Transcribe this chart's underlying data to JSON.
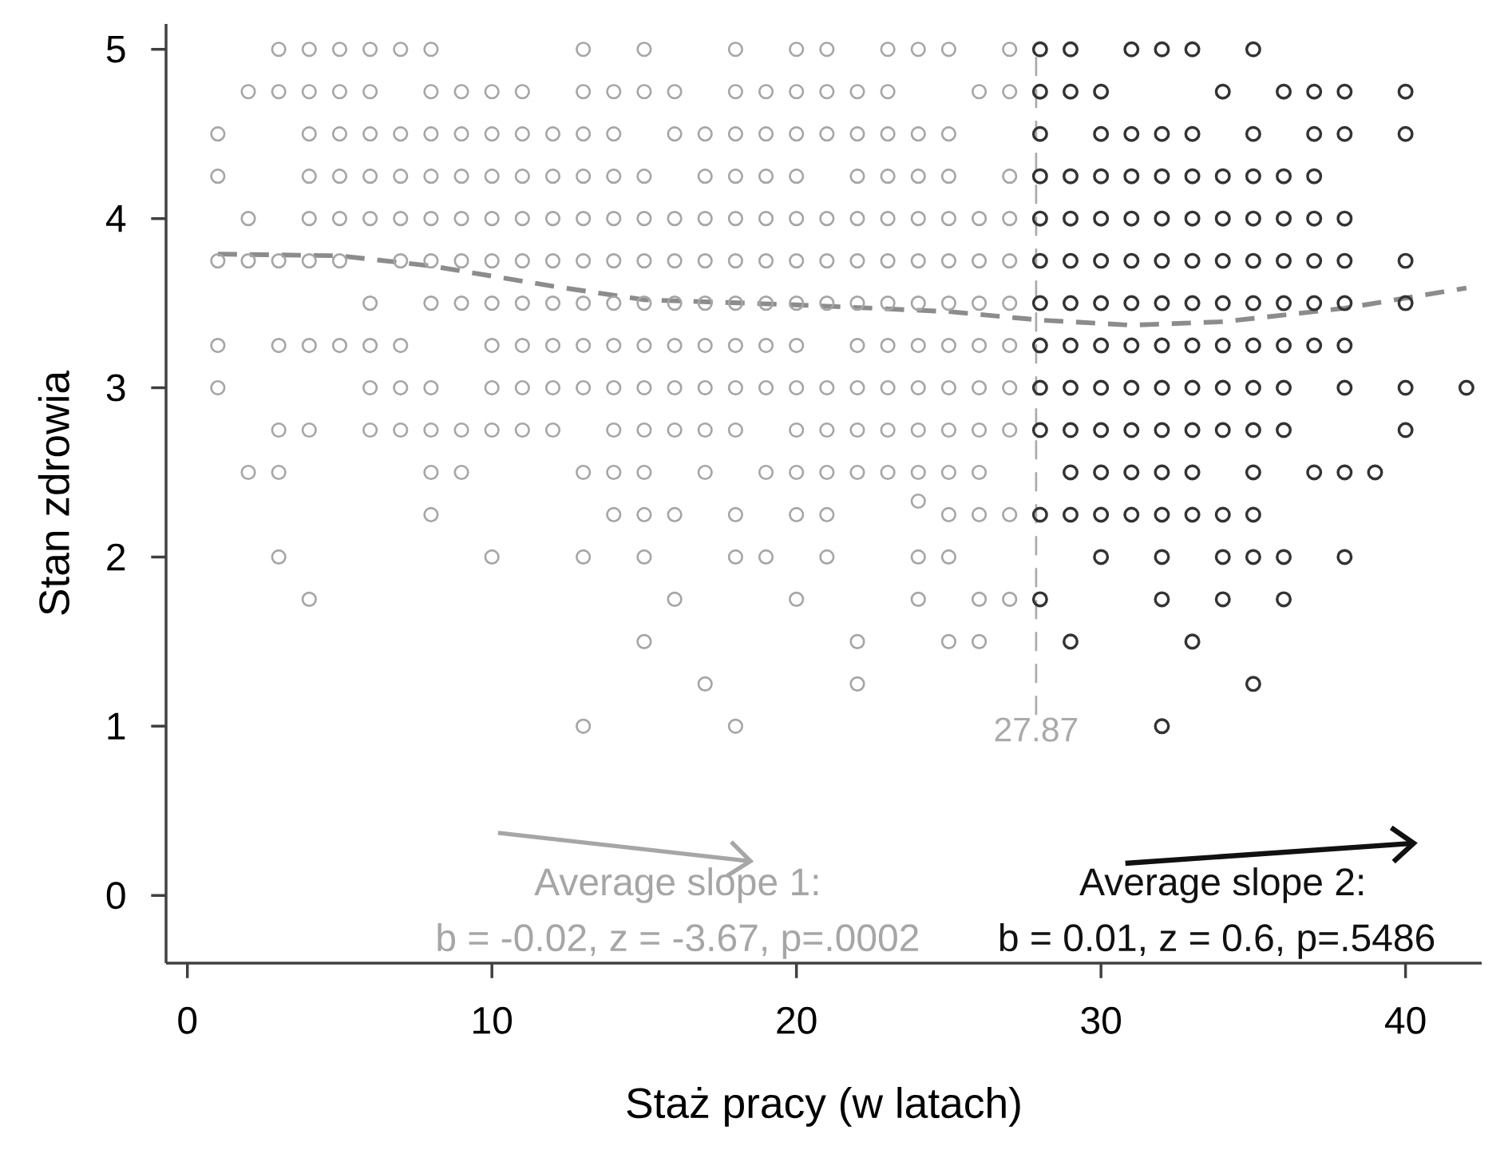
{
  "chart_data": {
    "type": "scatter",
    "xlabel": "Staż pracy (w latach)",
    "ylabel": "Stan zdrowia",
    "marker": "circle",
    "xlim": [
      -0.7,
      42.5
    ],
    "ylim": [
      -0.4,
      5.15
    ],
    "xticks": [
      0,
      10,
      20,
      30,
      40
    ],
    "yticks": [
      0,
      1,
      2,
      3,
      4,
      5
    ],
    "annotations": [
      "Average slope 1:",
      "b = -0.02, z = -3.67, p=.0002",
      "Average slope 2:",
      "b = 0.01, z = 0.6, p=.5486"
    ],
    "ref_lines": [
      {
        "axis": "x",
        "value": 27.87,
        "label": "27.87",
        "color": "#aaaaaa",
        "line_style": "dashed"
      }
    ],
    "series": [
      {
        "color": "#a6a6a6",
        "x": [
          3,
          4,
          5,
          6,
          7,
          8,
          13,
          15,
          18,
          20,
          21,
          23,
          24,
          25,
          27,
          2,
          3,
          4,
          5,
          6,
          8,
          9,
          10,
          11,
          13,
          14,
          15,
          16,
          18,
          19,
          20,
          21,
          22,
          23,
          26,
          27,
          1,
          4,
          5,
          6,
          7,
          8,
          9,
          10,
          11,
          12,
          13,
          14,
          16,
          17,
          18,
          19,
          20,
          21,
          22,
          23,
          24,
          25,
          1,
          4,
          5,
          6,
          7,
          8,
          9,
          10,
          11,
          12,
          13,
          14,
          15,
          17,
          18,
          19,
          20,
          22,
          23,
          24,
          25,
          27,
          2,
          4,
          5,
          6,
          7,
          8,
          9,
          10,
          11,
          12,
          13,
          14,
          15,
          16,
          17,
          18,
          19,
          20,
          21,
          22,
          23,
          24,
          25,
          26,
          27,
          1,
          2,
          3,
          4,
          5,
          7,
          8,
          9,
          10,
          11,
          12,
          13,
          14,
          15,
          16,
          17,
          18,
          19,
          20,
          21,
          22,
          23,
          24,
          25,
          26,
          27,
          6,
          8,
          9,
          10,
          11,
          12,
          13,
          14,
          15,
          16,
          17,
          18,
          19,
          20,
          21,
          22,
          23,
          24,
          25,
          26,
          27,
          1,
          3,
          4,
          5,
          6,
          7,
          10,
          11,
          12,
          13,
          14,
          15,
          16,
          17,
          18,
          19,
          20,
          22,
          23,
          24,
          25,
          26,
          27,
          1,
          6,
          7,
          8,
          10,
          11,
          12,
          13,
          14,
          15,
          16,
          17,
          18,
          19,
          20,
          21,
          22,
          23,
          24,
          25,
          26,
          27,
          3,
          4,
          6,
          7,
          8,
          9,
          10,
          11,
          12,
          14,
          15,
          16,
          17,
          18,
          20,
          21,
          22,
          23,
          24,
          25,
          26,
          27,
          2,
          3,
          8,
          9,
          13,
          14,
          15,
          17,
          19,
          20,
          21,
          22,
          23,
          24,
          25,
          26,
          24,
          8,
          14,
          15,
          16,
          18,
          20,
          21,
          25,
          26,
          27,
          3,
          10,
          13,
          15,
          18,
          19,
          21,
          24,
          25,
          4,
          16,
          20,
          24,
          26,
          27,
          15,
          22,
          25,
          26,
          17,
          22,
          13,
          18
        ],
        "values": [
          5,
          5,
          5,
          5,
          5,
          5,
          5,
          5,
          5,
          5,
          5,
          5,
          5,
          5,
          5,
          4.75,
          4.75,
          4.75,
          4.75,
          4.75,
          4.75,
          4.75,
          4.75,
          4.75,
          4.75,
          4.75,
          4.75,
          4.75,
          4.75,
          4.75,
          4.75,
          4.75,
          4.75,
          4.75,
          4.75,
          4.75,
          4.5,
          4.5,
          4.5,
          4.5,
          4.5,
          4.5,
          4.5,
          4.5,
          4.5,
          4.5,
          4.5,
          4.5,
          4.5,
          4.5,
          4.5,
          4.5,
          4.5,
          4.5,
          4.5,
          4.5,
          4.5,
          4.5,
          4.25,
          4.25,
          4.25,
          4.25,
          4.25,
          4.25,
          4.25,
          4.25,
          4.25,
          4.25,
          4.25,
          4.25,
          4.25,
          4.25,
          4.25,
          4.25,
          4.25,
          4.25,
          4.25,
          4.25,
          4.25,
          4.25,
          4,
          4,
          4,
          4,
          4,
          4,
          4,
          4,
          4,
          4,
          4,
          4,
          4,
          4,
          4,
          4,
          4,
          4,
          4,
          4,
          4,
          4,
          4,
          4,
          4,
          3.75,
          3.75,
          3.75,
          3.75,
          3.75,
          3.75,
          3.75,
          3.75,
          3.75,
          3.75,
          3.75,
          3.75,
          3.75,
          3.75,
          3.75,
          3.75,
          3.75,
          3.75,
          3.75,
          3.75,
          3.75,
          3.75,
          3.75,
          3.75,
          3.75,
          3.75,
          3.5,
          3.5,
          3.5,
          3.5,
          3.5,
          3.5,
          3.5,
          3.5,
          3.5,
          3.5,
          3.5,
          3.5,
          3.5,
          3.5,
          3.5,
          3.5,
          3.5,
          3.5,
          3.5,
          3.5,
          3.5,
          3.25,
          3.25,
          3.25,
          3.25,
          3.25,
          3.25,
          3.25,
          3.25,
          3.25,
          3.25,
          3.25,
          3.25,
          3.25,
          3.25,
          3.25,
          3.25,
          3.25,
          3.25,
          3.25,
          3.25,
          3.25,
          3.25,
          3.25,
          3,
          3,
          3,
          3,
          3,
          3,
          3,
          3,
          3,
          3,
          3,
          3,
          3,
          3,
          3,
          3,
          3,
          3,
          3,
          3,
          3,
          3,
          2.75,
          2.75,
          2.75,
          2.75,
          2.75,
          2.75,
          2.75,
          2.75,
          2.75,
          2.75,
          2.75,
          2.75,
          2.75,
          2.75,
          2.75,
          2.75,
          2.75,
          2.75,
          2.75,
          2.75,
          2.75,
          2.75,
          2.5,
          2.5,
          2.5,
          2.5,
          2.5,
          2.5,
          2.5,
          2.5,
          2.5,
          2.5,
          2.5,
          2.5,
          2.5,
          2.5,
          2.5,
          2.5,
          2.33,
          2.25,
          2.25,
          2.25,
          2.25,
          2.25,
          2.25,
          2.25,
          2.25,
          2.25,
          2.25,
          2,
          2,
          2,
          2,
          2,
          2,
          2,
          2,
          2,
          1.75,
          1.75,
          1.75,
          1.75,
          1.75,
          1.75,
          1.5,
          1.5,
          1.5,
          1.5,
          1.25,
          1.25,
          1,
          1
        ]
      },
      {
        "color": "#333333",
        "x": [
          28,
          29,
          31,
          32,
          33,
          35,
          28,
          29,
          30,
          34,
          36,
          37,
          38,
          40,
          28,
          30,
          31,
          32,
          33,
          35,
          37,
          38,
          40,
          28,
          29,
          30,
          31,
          32,
          33,
          34,
          35,
          36,
          37,
          28,
          29,
          30,
          31,
          32,
          33,
          34,
          35,
          36,
          37,
          38,
          28,
          29,
          30,
          31,
          32,
          33,
          34,
          35,
          36,
          37,
          38,
          40,
          28,
          29,
          30,
          31,
          32,
          33,
          34,
          35,
          36,
          37,
          38,
          40,
          28,
          29,
          30,
          31,
          32,
          33,
          34,
          35,
          36,
          37,
          38,
          28,
          29,
          30,
          31,
          32,
          33,
          34,
          35,
          36,
          38,
          40,
          42,
          28,
          29,
          30,
          31,
          32,
          33,
          34,
          35,
          36,
          40,
          29,
          30,
          31,
          32,
          33,
          35,
          37,
          38,
          39,
          28,
          29,
          30,
          31,
          32,
          33,
          34,
          35,
          30,
          32,
          34,
          35,
          36,
          38,
          28,
          32,
          34,
          36,
          29,
          33,
          35,
          32
        ],
        "values": [
          5,
          5,
          5,
          5,
          5,
          5,
          4.75,
          4.75,
          4.75,
          4.75,
          4.75,
          4.75,
          4.75,
          4.75,
          4.5,
          4.5,
          4.5,
          4.5,
          4.5,
          4.5,
          4.5,
          4.5,
          4.5,
          4.25,
          4.25,
          4.25,
          4.25,
          4.25,
          4.25,
          4.25,
          4.25,
          4.25,
          4.25,
          4,
          4,
          4,
          4,
          4,
          4,
          4,
          4,
          4,
          4,
          4,
          3.75,
          3.75,
          3.75,
          3.75,
          3.75,
          3.75,
          3.75,
          3.75,
          3.75,
          3.75,
          3.75,
          3.75,
          3.5,
          3.5,
          3.5,
          3.5,
          3.5,
          3.5,
          3.5,
          3.5,
          3.5,
          3.5,
          3.5,
          3.5,
          3.25,
          3.25,
          3.25,
          3.25,
          3.25,
          3.25,
          3.25,
          3.25,
          3.25,
          3.25,
          3.25,
          3,
          3,
          3,
          3,
          3,
          3,
          3,
          3,
          3,
          3,
          3,
          3,
          2.75,
          2.75,
          2.75,
          2.75,
          2.75,
          2.75,
          2.75,
          2.75,
          2.75,
          2.75,
          2.5,
          2.5,
          2.5,
          2.5,
          2.5,
          2.5,
          2.5,
          2.5,
          2.5,
          2.25,
          2.25,
          2.25,
          2.25,
          2.25,
          2.25,
          2.25,
          2.25,
          2,
          2,
          2,
          2,
          2,
          2,
          1.75,
          1.75,
          1.75,
          1.75,
          1.5,
          1.5,
          1.25,
          1
        ]
      },
      {
        "type": "line",
        "color": "#8c8c8c",
        "marker": "none",
        "line_style": "dashed",
        "x": [
          1,
          5,
          8,
          12,
          15,
          20,
          25,
          28,
          31,
          34,
          38,
          42
        ],
        "values": [
          3.79,
          3.78,
          3.72,
          3.6,
          3.52,
          3.49,
          3.45,
          3.4,
          3.37,
          3.39,
          3.47,
          3.59
        ]
      }
    ]
  }
}
